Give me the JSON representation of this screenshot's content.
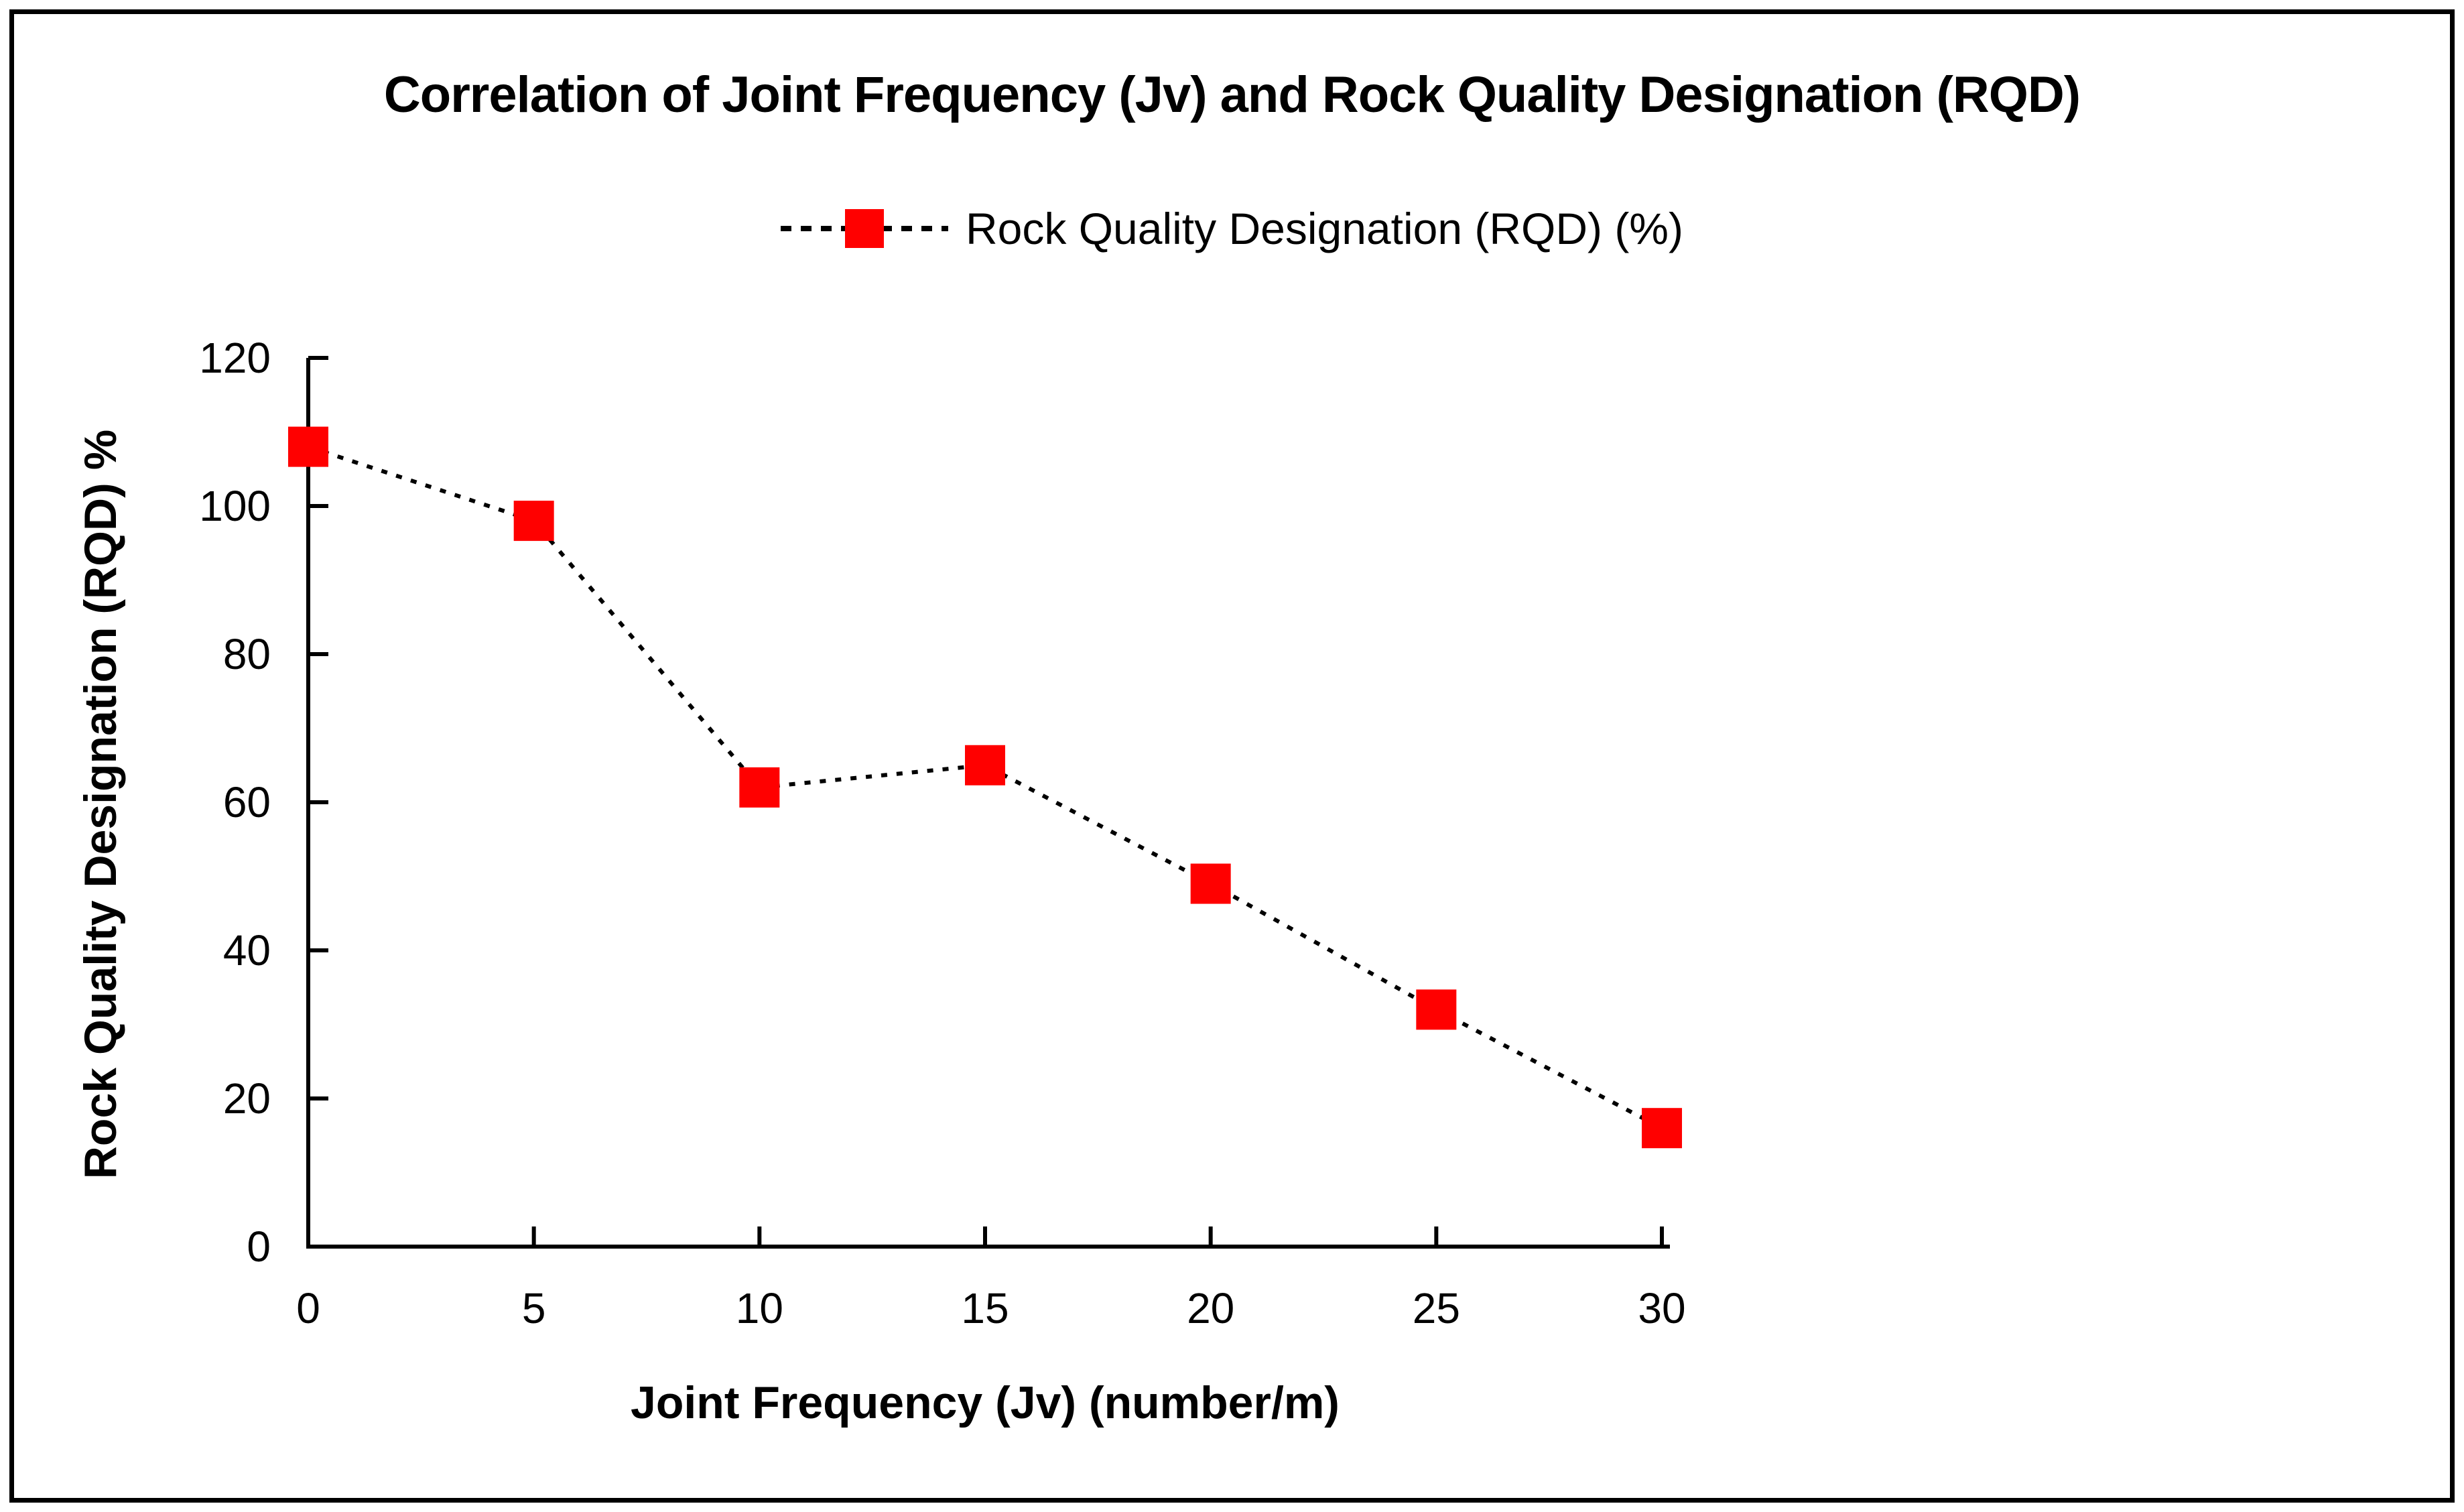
{
  "chart": {
    "title": "Correlation of Joint Frequency (Jv) and Rock Quality Designation (RQD)",
    "legend_label": "Rock Quality Designation (RQD) (%)",
    "ylabel": "Rock Quality Designation (RQD) %",
    "xlabel": "Joint Frequency (Jv) (number/m)"
  },
  "chart_data": {
    "type": "line",
    "title": "Correlation of Joint Frequency (Jv) and Rock Quality Designation (RQD)",
    "xlabel": "Joint Frequency (Jv) (number/m)",
    "ylabel": "Rock Quality Designation (RQD) %",
    "legend_entries": [
      "Rock Quality Designation (RQD) (%)"
    ],
    "legend_position": "top",
    "x": [
      0,
      5,
      10,
      15,
      20,
      25,
      30
    ],
    "series": [
      {
        "name": "Rock Quality Designation (RQD) (%)",
        "values": [
          108,
          98,
          62,
          65,
          49,
          32,
          16
        ]
      }
    ],
    "x_ticks": [
      0,
      5,
      10,
      15,
      20,
      25,
      30
    ],
    "y_ticks": [
      0,
      20,
      40,
      60,
      80,
      100,
      120
    ],
    "xlim": [
      0,
      30
    ],
    "ylim": [
      0,
      120
    ],
    "grid": false,
    "marker": "square",
    "marker_color": "#FF0000",
    "line_color": "#000000",
    "line_style": "dotted",
    "axis_color": "#000000",
    "background_color": "#FFFFFF"
  }
}
